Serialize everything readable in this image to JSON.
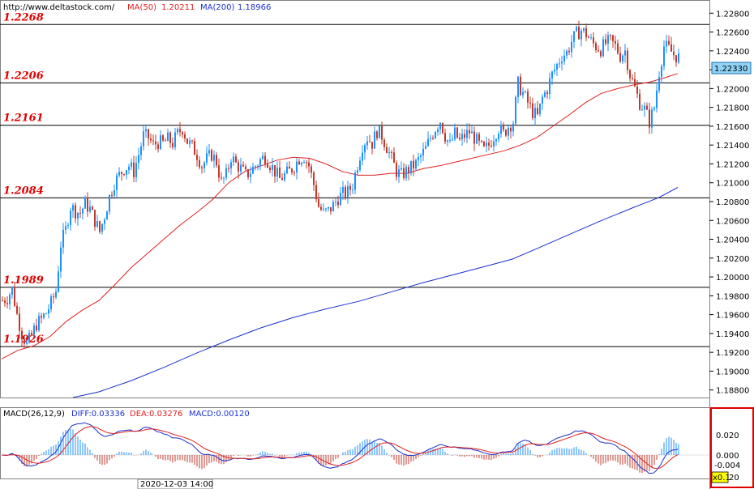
{
  "header": {
    "site": "http://www.deltastock.com/",
    "ma50_label": "MA(50)",
    "ma50_value": "1.20211",
    "ma200_label": "MA(200)",
    "ma200_value": "1.18966"
  },
  "macd_header": {
    "name": "MACD(26,12,9)",
    "diff": "DIFF:0.03336",
    "dea": "DEA:0.03276",
    "macd": "MACD:0.00120"
  },
  "bottom_date": "2020-12-03 14:00",
  "current_price_label": "1.22330",
  "macd_ticks": [
    "0.020",
    "0.000",
    "-0.004"
  ],
  "macd_scale_label": "x0.1",
  "macd_scale_tail": "20",
  "colors": {
    "bull": "#1e90ff",
    "bear": "#c0392b",
    "ma50": "#e02020",
    "ma200": "#1a2fd0",
    "level_text": "#e00000",
    "current_price_bg": "#8fd3f5",
    "macd_highlight_border": "#e00000",
    "macd_scale_bg": "#ffff00"
  },
  "chart_data": {
    "type": "candlestick",
    "ylim": [
      1.1872,
      1.2294
    ],
    "y_ticks": [
      "1.22800",
      "1.22600",
      "1.22400",
      "1.22200",
      "1.22000",
      "1.21800",
      "1.21600",
      "1.21400",
      "1.21200",
      "1.21000",
      "1.20800",
      "1.20600",
      "1.20400",
      "1.20200",
      "1.20000",
      "1.19800",
      "1.19600",
      "1.19400",
      "1.19200",
      "1.19000",
      "1.18800"
    ],
    "levels": [
      {
        "label": "1.2268",
        "value": 1.2268
      },
      {
        "label": "1.2206",
        "value": 1.2206
      },
      {
        "label": "1.2161",
        "value": 1.2161
      },
      {
        "label": "1.2084",
        "value": 1.2084
      },
      {
        "label": "1.1989",
        "value": 1.1989
      },
      {
        "label": "1.1926",
        "value": 1.1926
      }
    ],
    "current_price": 1.2233,
    "close_path": [
      [
        0,
        1.1975
      ],
      [
        6,
        1.1978
      ],
      [
        12,
        1.1987
      ],
      [
        18,
        1.196
      ],
      [
        24,
        1.194
      ],
      [
        30,
        1.1928
      ],
      [
        36,
        1.1938
      ],
      [
        42,
        1.195
      ],
      [
        48,
        1.1955
      ],
      [
        54,
        1.1962
      ],
      [
        60,
        1.1972
      ],
      [
        66,
        1.1985
      ],
      [
        72,
        1.2035
      ],
      [
        78,
        1.205
      ],
      [
        84,
        1.2075
      ],
      [
        90,
        1.207
      ],
      [
        96,
        1.2068
      ],
      [
        102,
        1.2078
      ],
      [
        108,
        1.2072
      ],
      [
        114,
        1.206
      ],
      [
        120,
        1.2048
      ],
      [
        126,
        1.2065
      ],
      [
        132,
        1.2085
      ],
      [
        138,
        1.21
      ],
      [
        144,
        1.2108
      ],
      [
        150,
        1.2115
      ],
      [
        156,
        1.2118
      ],
      [
        162,
        1.2112
      ],
      [
        168,
        1.213
      ],
      [
        174,
        1.215
      ],
      [
        180,
        1.2148
      ],
      [
        186,
        1.214
      ],
      [
        192,
        1.2143
      ],
      [
        198,
        1.2142
      ],
      [
        204,
        1.2146
      ],
      [
        210,
        1.2142
      ],
      [
        216,
        1.2152
      ],
      [
        222,
        1.2158
      ],
      [
        228,
        1.2144
      ],
      [
        234,
        1.2138
      ],
      [
        240,
        1.213
      ],
      [
        246,
        1.2118
      ],
      [
        252,
        1.2125
      ],
      [
        258,
        1.213
      ],
      [
        264,
        1.2122
      ],
      [
        270,
        1.21
      ],
      [
        276,
        1.2108
      ],
      [
        282,
        1.2128
      ],
      [
        288,
        1.212
      ],
      [
        294,
        1.2115
      ],
      [
        300,
        1.2108
      ],
      [
        306,
        1.2112
      ],
      [
        312,
        1.2118
      ],
      [
        318,
        1.2124
      ],
      [
        324,
        1.2128
      ],
      [
        330,
        1.212
      ],
      [
        336,
        1.2112
      ],
      [
        342,
        1.2104
      ],
      [
        348,
        1.2108
      ],
      [
        354,
        1.2112
      ],
      [
        360,
        1.2118
      ],
      [
        366,
        1.2126
      ],
      [
        372,
        1.2128
      ],
      [
        378,
        1.2118
      ],
      [
        384,
        1.2098
      ],
      [
        390,
        1.2075
      ],
      [
        396,
        1.2068
      ],
      [
        402,
        1.207
      ],
      [
        408,
        1.2076
      ],
      [
        414,
        1.2084
      ],
      [
        420,
        1.2088
      ],
      [
        426,
        1.209
      ],
      [
        432,
        1.2098
      ],
      [
        438,
        1.212
      ],
      [
        444,
        1.214
      ],
      [
        450,
        1.2148
      ],
      [
        456,
        1.2142
      ],
      [
        462,
        1.2155
      ],
      [
        468,
        1.215
      ],
      [
        474,
        1.2138
      ],
      [
        480,
        1.2125
      ],
      [
        486,
        1.2112
      ],
      [
        492,
        1.2108
      ],
      [
        498,
        1.2112
      ],
      [
        504,
        1.2116
      ],
      [
        510,
        1.212
      ],
      [
        516,
        1.2128
      ],
      [
        522,
        1.2136
      ],
      [
        528,
        1.2148
      ],
      [
        534,
        1.2158
      ],
      [
        540,
        1.2166
      ],
      [
        546,
        1.215
      ],
      [
        552,
        1.214
      ],
      [
        558,
        1.2152
      ],
      [
        564,
        1.2144
      ],
      [
        570,
        1.215
      ],
      [
        576,
        1.2154
      ],
      [
        582,
        1.2148
      ],
      [
        588,
        1.214
      ],
      [
        594,
        1.2134
      ],
      [
        600,
        1.214
      ],
      [
        606,
        1.215
      ],
      [
        612,
        1.2158
      ],
      [
        618,
        1.2152
      ],
      [
        624,
        1.216
      ],
      [
        630,
        1.2165
      ],
      [
        636,
        1.2205
      ],
      [
        642,
        1.2195
      ],
      [
        648,
        1.2185
      ],
      [
        654,
        1.2175
      ],
      [
        660,
        1.217
      ],
      [
        666,
        1.219
      ],
      [
        672,
        1.22
      ],
      [
        678,
        1.2215
      ],
      [
        684,
        1.2225
      ],
      [
        690,
        1.2235
      ],
      [
        696,
        1.2238
      ],
      [
        702,
        1.225
      ],
      [
        708,
        1.2258
      ],
      [
        714,
        1.2262
      ],
      [
        720,
        1.2258
      ],
      [
        726,
        1.225
      ],
      [
        732,
        1.2245
      ],
      [
        738,
        1.2242
      ],
      [
        744,
        1.2248
      ],
      [
        750,
        1.225
      ],
      [
        756,
        1.2245
      ],
      [
        762,
        1.2235
      ],
      [
        768,
        1.224
      ],
      [
        774,
        1.2215
      ],
      [
        780,
        1.22
      ],
      [
        786,
        1.2185
      ],
      [
        792,
        1.2178
      ],
      [
        798,
        1.2165
      ],
      [
        804,
        1.218
      ],
      [
        810,
        1.2218
      ],
      [
        816,
        1.2245
      ],
      [
        822,
        1.2242
      ],
      [
        828,
        1.2236
      ],
      [
        834,
        1.2233
      ]
    ],
    "ma50_path": [
      [
        0,
        1.1913
      ],
      [
        20,
        1.1922
      ],
      [
        40,
        1.1927
      ],
      [
        60,
        1.1937
      ],
      [
        80,
        1.1953
      ],
      [
        100,
        1.1965
      ],
      [
        120,
        1.1975
      ],
      [
        140,
        1.1992
      ],
      [
        160,
        1.201
      ],
      [
        180,
        1.2025
      ],
      [
        200,
        1.204
      ],
      [
        220,
        1.2055
      ],
      [
        240,
        1.2068
      ],
      [
        260,
        1.2082
      ],
      [
        280,
        1.21
      ],
      [
        300,
        1.2112
      ],
      [
        320,
        1.2118
      ],
      [
        340,
        1.2124
      ],
      [
        360,
        1.2127
      ],
      [
        380,
        1.2126
      ],
      [
        400,
        1.212
      ],
      [
        420,
        1.2112
      ],
      [
        440,
        1.2108
      ],
      [
        460,
        1.2108
      ],
      [
        480,
        1.211
      ],
      [
        500,
        1.211
      ],
      [
        520,
        1.2115
      ],
      [
        540,
        1.2118
      ],
      [
        560,
        1.2122
      ],
      [
        580,
        1.2126
      ],
      [
        600,
        1.213
      ],
      [
        620,
        1.2134
      ],
      [
        640,
        1.214
      ],
      [
        660,
        1.2148
      ],
      [
        680,
        1.216
      ],
      [
        700,
        1.2172
      ],
      [
        720,
        1.2185
      ],
      [
        740,
        1.2195
      ],
      [
        760,
        1.22
      ],
      [
        780,
        1.2204
      ],
      [
        800,
        1.2207
      ],
      [
        820,
        1.2212
      ],
      [
        834,
        1.2216
      ]
    ],
    "ma200_path": [
      [
        88,
        1.1872
      ],
      [
        120,
        1.1878
      ],
      [
        160,
        1.189
      ],
      [
        200,
        1.1904
      ],
      [
        240,
        1.1919
      ],
      [
        280,
        1.1933
      ],
      [
        320,
        1.1946
      ],
      [
        360,
        1.1957
      ],
      [
        400,
        1.1966
      ],
      [
        440,
        1.1974
      ],
      [
        480,
        1.1984
      ],
      [
        520,
        1.1994
      ],
      [
        560,
        1.2003
      ],
      [
        600,
        1.2012
      ],
      [
        630,
        1.2019
      ],
      [
        660,
        1.203
      ],
      [
        700,
        1.2045
      ],
      [
        740,
        1.206
      ],
      [
        780,
        1.2074
      ],
      [
        810,
        1.2084
      ],
      [
        834,
        1.2095
      ]
    ]
  }
}
